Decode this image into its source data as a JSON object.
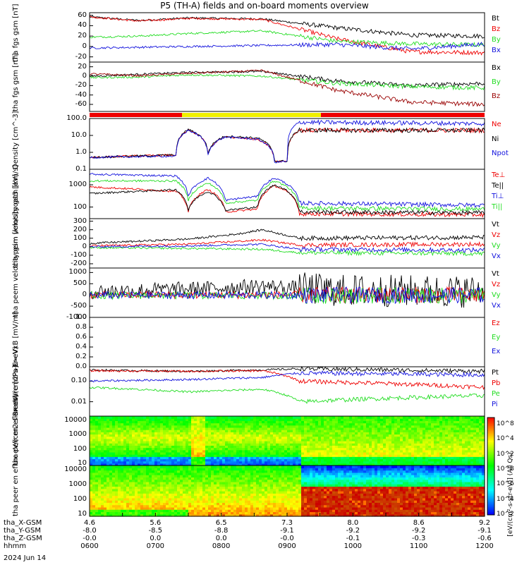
{
  "title": "P5 (TH-A) fields and on-board moments overview",
  "date": "2024 Jun 14",
  "colorbar_label": "[eV/(cm²-s-str-eV)] (All Qs)",
  "colors": {
    "black": "#000000",
    "red": "#ee0000",
    "green": "#22dd22",
    "blue": "#1111dd",
    "darkred": "#990000",
    "yellow": "#f0f000"
  },
  "xaxis": {
    "rows": [
      {
        "label": "tha_X-GSM",
        "values": [
          "4.6",
          "5.6",
          "6.5",
          "7.3",
          "8.0",
          "8.6",
          "9.2"
        ]
      },
      {
        "label": "tha_Y-GSM",
        "values": [
          "-8.0",
          "-8.5",
          "-8.8",
          "-9.1",
          "-9.2",
          "-9.2",
          "-9.1"
        ]
      },
      {
        "label": "tha_Z-GSM",
        "values": [
          "-0.0",
          "0.0",
          "0.0",
          "-0.0",
          "-0.1",
          "-0.3",
          "-0.6"
        ]
      },
      {
        "label": "hhmm",
        "values": [
          "0600",
          "0700",
          "0800",
          "0900",
          "1000",
          "1100",
          "1200"
        ]
      }
    ]
  },
  "chart_data": [
    {
      "type": "line",
      "ylabel": "tha fgs gsm [nT]",
      "ylim": [
        -30,
        65
      ],
      "ticks": [
        "60",
        "40",
        "20",
        "0",
        "-20"
      ],
      "series": [
        {
          "name": "Bt",
          "color": "black",
          "profile": [
            [
              0,
              57
            ],
            [
              20,
              50
            ],
            [
              40,
              55
            ],
            [
              70,
              53
            ],
            [
              100,
              36
            ],
            [
              130,
              22
            ],
            [
              160,
              20
            ]
          ]
        },
        {
          "name": "Bz",
          "color": "red",
          "profile": [
            [
              0,
              57
            ],
            [
              20,
              49
            ],
            [
              40,
              54
            ],
            [
              70,
              52
            ],
            [
              100,
              15
            ],
            [
              130,
              -10
            ],
            [
              160,
              -12
            ]
          ]
        },
        {
          "name": "By",
          "color": "green",
          "profile": [
            [
              0,
              18
            ],
            [
              20,
              20
            ],
            [
              40,
              25
            ],
            [
              70,
              30
            ],
            [
              100,
              10
            ],
            [
              130,
              5
            ],
            [
              160,
              3
            ]
          ]
        },
        {
          "name": "Bx",
          "color": "blue",
          "profile": [
            [
              0,
              -3
            ],
            [
              40,
              0
            ],
            [
              70,
              2
            ],
            [
              100,
              4
            ],
            [
              130,
              -5
            ],
            [
              160,
              5
            ]
          ]
        }
      ]
    },
    {
      "type": "line",
      "ylabel": "tha fgs gsm [nT]",
      "ylim": [
        -75,
        30
      ],
      "ticks": [
        "20",
        "0",
        "-20",
        "-40",
        "-60"
      ],
      "series": [
        {
          "name": "Bx",
          "color": "black",
          "profile": [
            [
              0,
              0
            ],
            [
              20,
              4
            ],
            [
              40,
              8
            ],
            [
              70,
              10
            ],
            [
              100,
              -10
            ],
            [
              130,
              -20
            ],
            [
              160,
              -15
            ]
          ]
        },
        {
          "name": "By",
          "color": "green",
          "profile": [
            [
              0,
              -3
            ],
            [
              20,
              -2
            ],
            [
              40,
              3
            ],
            [
              70,
              0
            ],
            [
              100,
              -15
            ],
            [
              130,
              -22
            ],
            [
              160,
              -25
            ]
          ]
        },
        {
          "name": "Bz",
          "color": "darkred",
          "profile": [
            [
              0,
              5
            ],
            [
              20,
              1
            ],
            [
              40,
              6
            ],
            [
              70,
              12
            ],
            [
              100,
              -30
            ],
            [
              130,
              -55
            ],
            [
              160,
              -60
            ]
          ]
        }
      ]
    },
    {
      "type": "line",
      "ylabel": "Density [cm^-3]",
      "scale": "log",
      "ylim": [
        0.1,
        100
      ],
      "ticks": [
        "100.0",
        "10.0",
        "1.0",
        "0.1"
      ],
      "series": [
        {
          "name": "Ne",
          "color": "red",
          "profile": [
            [
              0,
              0.5
            ],
            [
              35,
              0.7
            ],
            [
              40,
              20
            ],
            [
              48,
              0.8
            ],
            [
              55,
              8
            ],
            [
              68,
              6
            ],
            [
              75,
              0.3
            ],
            [
              80,
              0.3
            ],
            [
              85,
              20
            ],
            [
              160,
              20
            ]
          ]
        },
        {
          "name": "Ni",
          "color": "black",
          "profile": [
            [
              0,
              0.5
            ],
            [
              35,
              0.7
            ],
            [
              40,
              22
            ],
            [
              48,
              0.8
            ],
            [
              55,
              9
            ],
            [
              68,
              7
            ],
            [
              75,
              0.3
            ],
            [
              80,
              0.3
            ],
            [
              85,
              20
            ],
            [
              160,
              20
            ]
          ]
        },
        {
          "name": "Npot",
          "color": "blue",
          "profile": [
            [
              0,
              0.5
            ],
            [
              35,
              0.6
            ],
            [
              40,
              20
            ],
            [
              48,
              0.7
            ],
            [
              55,
              8
            ],
            [
              68,
              6
            ],
            [
              75,
              0.25
            ],
            [
              80,
              0.3
            ],
            [
              85,
              60
            ],
            [
              160,
              50
            ]
          ]
        }
      ]
    },
    {
      "type": "line",
      "ylabel": "moat3 [eV]",
      "scale": "log",
      "ylim": [
        30,
        5000
      ],
      "ticks": [
        "1000",
        "100"
      ],
      "series": [
        {
          "name": "Te⊥",
          "color": "red",
          "profile": [
            [
              0,
              800
            ],
            [
              35,
              500
            ],
            [
              40,
              60
            ],
            [
              48,
              600
            ],
            [
              55,
              60
            ],
            [
              68,
              80
            ],
            [
              75,
              900
            ],
            [
              85,
              50
            ],
            [
              160,
              45
            ]
          ]
        },
        {
          "name": "Te||",
          "color": "black",
          "profile": [
            [
              0,
              400
            ],
            [
              35,
              600
            ],
            [
              40,
              70
            ],
            [
              48,
              500
            ],
            [
              55,
              70
            ],
            [
              68,
              100
            ],
            [
              75,
              1000
            ],
            [
              85,
              60
            ],
            [
              160,
              55
            ]
          ]
        },
        {
          "name": "Ti⊥",
          "color": "blue",
          "profile": [
            [
              0,
              3000
            ],
            [
              35,
              2500
            ],
            [
              40,
              300
            ],
            [
              48,
              2000
            ],
            [
              55,
              200
            ],
            [
              68,
              300
            ],
            [
              75,
              2000
            ],
            [
              85,
              150
            ],
            [
              160,
              120
            ]
          ]
        },
        {
          "name": "Ti||",
          "color": "green",
          "profile": [
            [
              0,
              1500
            ],
            [
              35,
              1500
            ],
            [
              40,
              200
            ],
            [
              48,
              1200
            ],
            [
              55,
              150
            ],
            [
              68,
              200
            ],
            [
              75,
              1500
            ],
            [
              85,
              90
            ],
            [
              160,
              80
            ]
          ]
        }
      ]
    },
    {
      "type": "line",
      "ylabel": "tha peim velocity gsm [km/s]",
      "ylim": [
        -250,
        330
      ],
      "ticks": [
        "300",
        "200",
        "100",
        "0",
        "-100",
        "-200"
      ],
      "series": [
        {
          "name": "Vt",
          "color": "black",
          "profile": [
            [
              0,
              40
            ],
            [
              40,
              90
            ],
            [
              60,
              150
            ],
            [
              70,
              200
            ],
            [
              85,
              100
            ],
            [
              160,
              110
            ]
          ]
        },
        {
          "name": "Vz",
          "color": "red",
          "profile": [
            [
              0,
              10
            ],
            [
              40,
              30
            ],
            [
              70,
              80
            ],
            [
              85,
              20
            ],
            [
              160,
              30
            ]
          ]
        },
        {
          "name": "Vy",
          "color": "green",
          "profile": [
            [
              0,
              -10
            ],
            [
              40,
              -20
            ],
            [
              70,
              -30
            ],
            [
              85,
              -70
            ],
            [
              160,
              -80
            ]
          ]
        },
        {
          "name": "Vx",
          "color": "blue",
          "profile": [
            [
              0,
              0
            ],
            [
              40,
              10
            ],
            [
              70,
              30
            ],
            [
              85,
              -30
            ],
            [
              160,
              -40
            ]
          ]
        }
      ]
    },
    {
      "type": "line",
      "ylabel": "tha peem velocity gsm [km/s]",
      "ylim": [
        -1000,
        1200
      ],
      "ticks": [
        "1000",
        "500",
        "0",
        "-500",
        "-1000"
      ],
      "series": [
        {
          "name": "Vt",
          "color": "black",
          "profile": [
            [
              0,
              150
            ],
            [
              50,
              300
            ],
            [
              70,
              400
            ],
            [
              100,
              200
            ],
            [
              160,
              150
            ]
          ]
        },
        {
          "name": "Vz",
          "color": "red",
          "profile": [
            [
              0,
              0
            ],
            [
              160,
              0
            ]
          ]
        },
        {
          "name": "Vy",
          "color": "green",
          "profile": [
            [
              0,
              -20
            ],
            [
              160,
              -30
            ]
          ]
        },
        {
          "name": "Vx",
          "color": "blue",
          "profile": [
            [
              0,
              -10
            ],
            [
              160,
              -10
            ]
          ]
        }
      ]
    },
    {
      "type": "line",
      "ylabel": "E=-VxB [mV/m]",
      "ylim": [
        0,
        1.0
      ],
      "ticks": [
        "1.0",
        "0.8",
        "0.6",
        "0.4",
        "0.2",
        "0.0"
      ],
      "series": [
        {
          "name": "Ez",
          "color": "red",
          "profile": []
        },
        {
          "name": "Ey",
          "color": "green",
          "profile": []
        },
        {
          "name": "Ex",
          "color": "blue",
          "profile": []
        }
      ]
    },
    {
      "type": "line",
      "ylabel": "Pressure [nPa]",
      "scale": "log",
      "ylim": [
        0.002,
        0.5
      ],
      "ticks": [
        "0.10",
        "0.01"
      ],
      "series": [
        {
          "name": "Pt",
          "color": "black",
          "profile": [
            [
              0,
              0.35
            ],
            [
              40,
              0.3
            ],
            [
              70,
              0.35
            ],
            [
              85,
              0.4
            ],
            [
              160,
              0.3
            ]
          ]
        },
        {
          "name": "Pb",
          "color": "red",
          "profile": [
            [
              0,
              0.32
            ],
            [
              40,
              0.3
            ],
            [
              70,
              0.32
            ],
            [
              85,
              0.1
            ],
            [
              160,
              0.05
            ]
          ]
        },
        {
          "name": "Pe",
          "color": "green",
          "profile": [
            [
              0,
              0.05
            ],
            [
              40,
              0.03
            ],
            [
              70,
              0.04
            ],
            [
              85,
              0.01
            ],
            [
              160,
              0.02
            ]
          ]
        },
        {
          "name": "Pi",
          "color": "blue",
          "profile": [
            [
              0,
              0.1
            ],
            [
              40,
              0.12
            ],
            [
              70,
              0.15
            ],
            [
              85,
              0.25
            ],
            [
              160,
              0.2
            ]
          ]
        }
      ]
    },
    {
      "type": "heatmap",
      "ylabel": "tha peir en eflux eV/(cm2-s-sr-eV)",
      "scale": "log",
      "ylim": [
        7,
        20000
      ],
      "ticks": [
        "10000",
        "1000",
        "100",
        "10"
      ]
    },
    {
      "type": "heatmap",
      "ylabel": "tha peer en eflux eV/(cm2-s-sr-eV)",
      "scale": "log",
      "ylim": [
        7,
        20000
      ],
      "ticks": [
        "10000",
        "1000",
        "100",
        "10"
      ]
    }
  ],
  "colorbar": {
    "ticks": [
      "10^8",
      "10^4",
      "10^2",
      "10^8",
      "10^6",
      "10^4",
      "10^2"
    ]
  }
}
